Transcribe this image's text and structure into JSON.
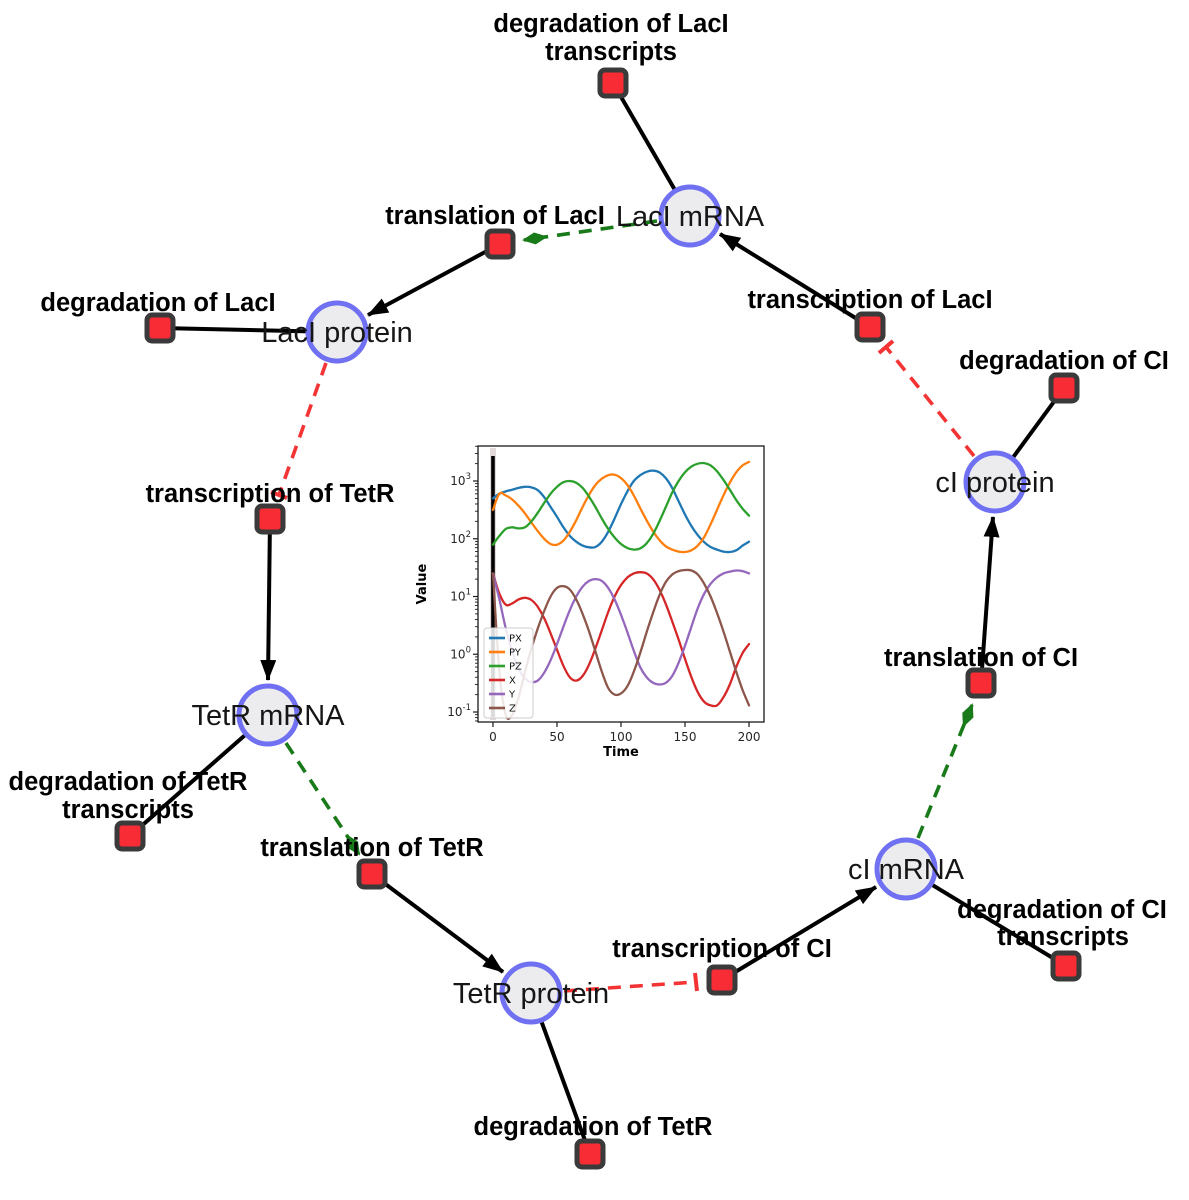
{
  "diagram": {
    "species": [
      {
        "id": "laci-mrna",
        "label": "LacI mRNA"
      },
      {
        "id": "laci-protein",
        "label": "LacI protein"
      },
      {
        "id": "ci-protein",
        "label": "cI protein"
      },
      {
        "id": "tetr-mrna",
        "label": "TetR mRNA"
      },
      {
        "id": "tetr-protein",
        "label": "TetR protein"
      },
      {
        "id": "ci-mrna",
        "label": "cI mRNA"
      }
    ],
    "reactions": [
      {
        "id": "degradation-laci-transcripts",
        "label": "degradation of LacI",
        "label2": "transcripts"
      },
      {
        "id": "translation-laci",
        "label": "translation of LacI"
      },
      {
        "id": "transcription-laci",
        "label": "transcription of LacI"
      },
      {
        "id": "degradation-laci",
        "label": "degradation of LacI"
      },
      {
        "id": "degradation-ci",
        "label": "degradation of CI"
      },
      {
        "id": "transcription-tetr",
        "label": "transcription of TetR"
      },
      {
        "id": "translation-ci",
        "label": "translation of CI"
      },
      {
        "id": "degradation-tetr-transcripts",
        "label": "degradation of TetR",
        "label2": "transcripts"
      },
      {
        "id": "translation-tetr",
        "label": "translation of TetR"
      },
      {
        "id": "transcription-ci",
        "label": "transcription of CI"
      },
      {
        "id": "degradation-ci-transcripts",
        "label": "degradation of CI",
        "label2": "transcripts"
      },
      {
        "id": "degradation-tetr",
        "label": "degradation of TetR"
      }
    ],
    "colors": {
      "species_fill": "#ececee",
      "species_border": "#7070f2",
      "reaction_fill": "#f72c34",
      "reaction_border": "#3a3a3a",
      "edge": "#000000",
      "activation": "#187a18",
      "inhibition": "#f43434"
    }
  },
  "chart_data": {
    "type": "line",
    "title": "",
    "xlabel": "Time",
    "ylabel": "Value",
    "x_ticks": [
      0,
      50,
      100,
      150,
      200
    ],
    "y_scale": "log",
    "y_tick_exponents": [
      -1,
      0,
      1,
      2,
      3
    ],
    "xlim": [
      -11.7,
      211.7
    ],
    "ylim_log": [
      -1.173,
      3.606
    ],
    "vline_x": 0,
    "grid": false,
    "legend_position": "lower left",
    "x": [
      0,
      5,
      10,
      15,
      20,
      25,
      30,
      35,
      40,
      45,
      50,
      55,
      60,
      65,
      70,
      75,
      80,
      85,
      90,
      95,
      100,
      105,
      110,
      115,
      120,
      125,
      130,
      135,
      140,
      145,
      150,
      155,
      160,
      165,
      170,
      175,
      180,
      185,
      190,
      195,
      200
    ],
    "series": [
      {
        "name": "PX",
        "color": "#1f77b4",
        "values": [
          501,
          603,
          661,
          708,
          759,
          794,
          776,
          692,
          525,
          355,
          240,
          158,
          112,
          89,
          76,
          71,
          72,
          89,
          132,
          224,
          398,
          661,
          1000,
          1259,
          1445,
          1514,
          1413,
          1122,
          759,
          447,
          263,
          166,
          115,
          87,
          72,
          65,
          60,
          59,
          63,
          76,
          89
        ]
      },
      {
        "name": "PY",
        "color": "#ff7f0e",
        "values": [
          316,
          603,
          562,
          479,
          372,
          275,
          191,
          135,
          100,
          81,
          79,
          93,
          132,
          209,
          355,
          575,
          851,
          1096,
          1259,
          1288,
          1122,
          851,
          562,
          339,
          209,
          135,
          95,
          74,
          65,
          60,
          59,
          63,
          76,
          107,
          178,
          316,
          562,
          933,
          1413,
          1862,
          2138
        ]
      },
      {
        "name": "PZ",
        "color": "#2ca02c",
        "values": [
          79,
          112,
          148,
          158,
          151,
          158,
          200,
          282,
          417,
          603,
          794,
          955,
          1000,
          933,
          759,
          537,
          355,
          224,
          148,
          105,
          81,
          69,
          65,
          68,
          83,
          120,
          200,
          355,
          631,
          1000,
          1413,
          1778,
          1995,
          2042,
          1862,
          1479,
          1047,
          708,
          468,
          331,
          251
        ]
      },
      {
        "name": "X",
        "color": "#d62728",
        "values": [
          25.1,
          11.2,
          7.2,
          7.6,
          8.9,
          9.5,
          8.7,
          6.6,
          4.2,
          2.3,
          1.2,
          0.63,
          0.4,
          0.35,
          0.42,
          0.66,
          1.26,
          2.6,
          5.4,
          10,
          15.8,
          21.4,
          25.1,
          26.3,
          25.1,
          20,
          13.2,
          7.4,
          3.7,
          1.8,
          0.83,
          0.4,
          0.22,
          0.15,
          0.13,
          0.13,
          0.18,
          0.3,
          0.6,
          1.05,
          1.5
        ]
      },
      {
        "name": "Y",
        "color": "#9467bd",
        "values": [
          25.1,
          8.9,
          2.8,
          1.12,
          0.56,
          0.38,
          0.33,
          0.35,
          0.48,
          0.79,
          1.5,
          3,
          5.8,
          10,
          14.8,
          18.6,
          20,
          18.6,
          14.1,
          8.9,
          4.8,
          2.4,
          1.15,
          0.6,
          0.4,
          0.32,
          0.3,
          0.32,
          0.42,
          0.71,
          1.4,
          3,
          6.3,
          11.2,
          16.6,
          21.4,
          25.1,
          26.9,
          28.2,
          27.5,
          25.1
        ]
      },
      {
        "name": "Z",
        "color": "#8c564b",
        "values": [
          25.1,
          0.5,
          0.089,
          0.089,
          0.18,
          0.5,
          1.26,
          2.8,
          5.6,
          10,
          14.1,
          15.1,
          13.2,
          8.9,
          5,
          2.5,
          1.12,
          0.5,
          0.26,
          0.2,
          0.21,
          0.28,
          0.5,
          1.05,
          2.4,
          5.2,
          10.5,
          17.8,
          24,
          27.5,
          28.8,
          28.2,
          24,
          16.6,
          10,
          5.2,
          2.5,
          1.12,
          0.5,
          0.24,
          0.13
        ]
      }
    ]
  }
}
